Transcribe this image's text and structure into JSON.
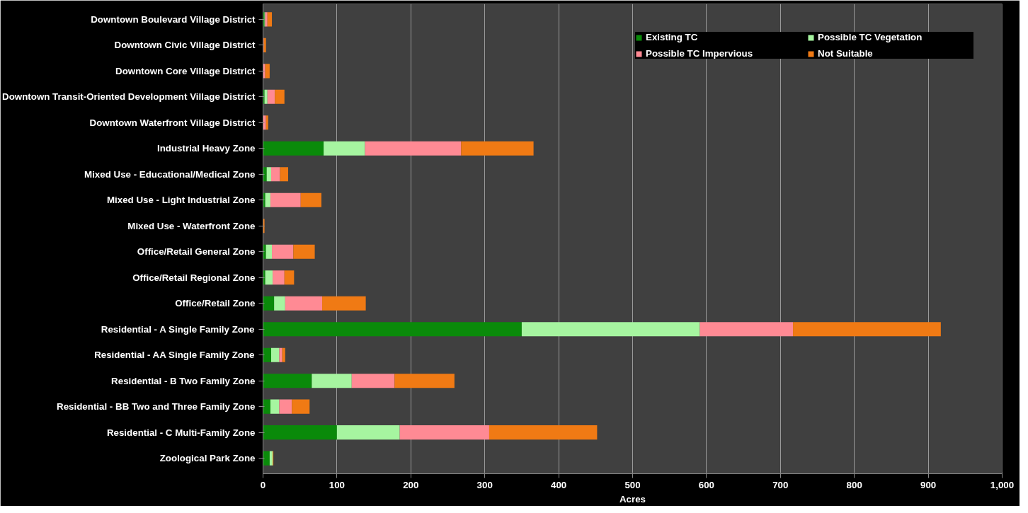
{
  "chart_data": {
    "type": "bar",
    "orientation": "horizontal",
    "stacked": true,
    "xlabel": "Acres",
    "categories": [
      "Downtown Boulevard Village District",
      "Downtown Civic Village District",
      "Downtown Core Village District",
      "Downtown Transit-Oriented Development Village District",
      "Downtown Waterfront Village District",
      "Industrial Heavy Zone",
      "Mixed Use - Educational/Medical Zone",
      "Mixed Use - Light Industrial Zone",
      "Mixed Use - Waterfront Zone",
      "Office/Retail General Zone",
      "Office/Retail Regional Zone",
      "Office/Retail Zone",
      "Residential - A Single Family Zone",
      "Residential - AA Single Family Zone",
      "Residential - B Two Family Zone",
      "Residential - BB Two and Three Family Zone",
      "Residential - C Multi-Family Zone",
      "Zoological Park Zone"
    ],
    "series": [
      {
        "name": "Existing TC",
        "color": "#0a8a0a",
        "values": [
          2,
          0,
          0,
          2,
          0,
          82,
          5,
          3,
          0,
          4,
          3,
          15,
          350,
          11,
          66,
          10,
          100,
          9
        ]
      },
      {
        "name": "Possible TC Vegetation",
        "color": "#a6f5a0",
        "values": [
          1,
          0,
          0,
          4,
          0,
          56,
          6,
          7,
          0,
          8,
          10,
          15,
          241,
          11,
          54,
          12,
          85,
          4
        ]
      },
      {
        "name": "Possible TC Impervious",
        "color": "#ff8a94",
        "values": [
          3,
          1,
          3,
          10,
          4,
          130,
          12,
          41,
          0,
          29,
          16,
          50,
          126,
          4,
          58,
          17,
          121,
          0
        ]
      },
      {
        "name": "Not Suitable",
        "color": "#f07a14",
        "values": [
          6,
          3,
          6,
          13,
          3,
          98,
          11,
          28,
          2,
          29,
          13,
          59,
          200,
          4,
          81,
          24,
          146,
          1
        ]
      }
    ],
    "xlim": [
      0,
      1000
    ],
    "xticks": [
      0,
      100,
      200,
      300,
      400,
      500,
      600,
      700,
      800,
      900,
      {
        "value": 1000,
        "label": "1,000"
      }
    ],
    "grid": "x",
    "legend": "top right"
  }
}
